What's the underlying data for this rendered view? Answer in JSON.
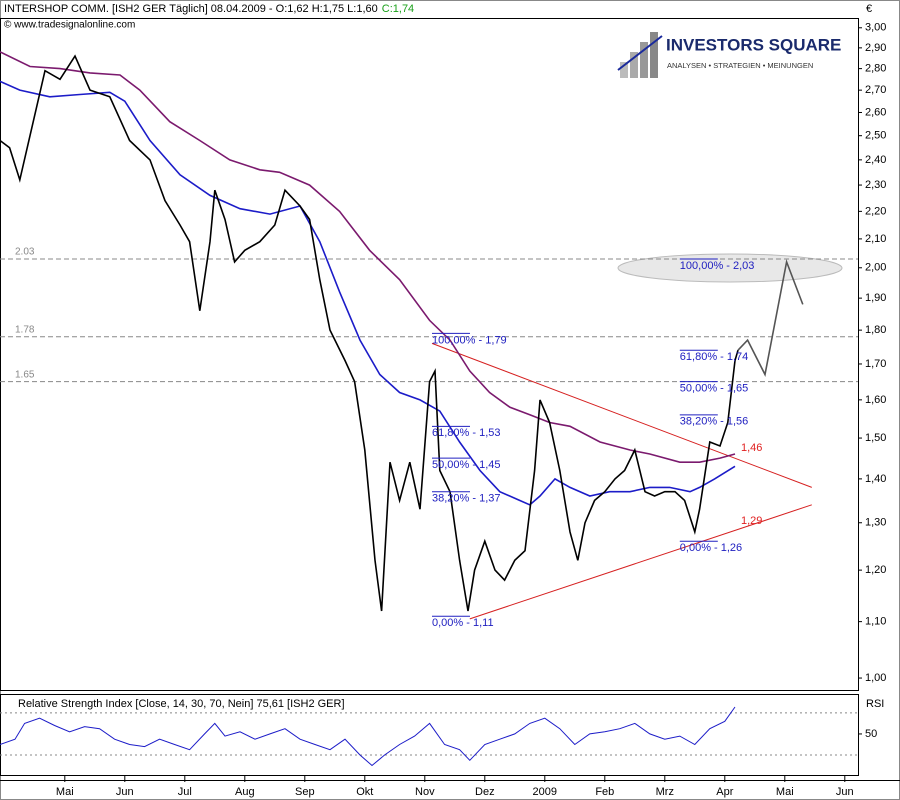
{
  "logo": {
    "title": "INVESTORS SQUARE",
    "subtitle": "ANALYSEN • STRATEGIEN • MEINUNGEN"
  },
  "chart_data": [
    {
      "type": "line",
      "title": "INTERSHOP COMM. [ISH2 GER  Täglich] 08.04.2009 - O:1,62 H:1,75 L:1,60",
      "title_close": "C:1,74",
      "source": "© www.tradesignalonline.com",
      "currency": "€",
      "log_scale": true,
      "xlim": [
        -0.08,
        14.22
      ],
      "xticks": [
        {
          "value": 1,
          "label": "Mai"
        },
        {
          "value": 2,
          "label": "Jun"
        },
        {
          "value": 3,
          "label": "Jul"
        },
        {
          "value": 4,
          "label": "Aug"
        },
        {
          "value": 5,
          "label": "Sep"
        },
        {
          "value": 6,
          "label": "Okt"
        },
        {
          "value": 7,
          "label": "Nov"
        },
        {
          "value": 8,
          "label": "Dez"
        },
        {
          "value": 9,
          "label": "2009"
        },
        {
          "value": 10,
          "label": "Feb"
        },
        {
          "value": 11,
          "label": "Mrz"
        },
        {
          "value": 12,
          "label": "Apr"
        },
        {
          "value": 13,
          "label": "Mai"
        },
        {
          "value": 14,
          "label": "Jun"
        }
      ],
      "ylim": [
        0.98,
        3.05
      ],
      "yticks": [
        {
          "value": 1.0,
          "label": "1,00"
        },
        {
          "value": 1.1,
          "label": "1,10"
        },
        {
          "value": 1.2,
          "label": "1,20"
        },
        {
          "value": 1.3,
          "label": "1,30"
        },
        {
          "value": 1.4,
          "label": "1,40"
        },
        {
          "value": 1.5,
          "label": "1,50"
        },
        {
          "value": 1.6,
          "label": "1,60"
        },
        {
          "value": 1.7,
          "label": "1,70"
        },
        {
          "value": 1.8,
          "label": "1,80"
        },
        {
          "value": 1.9,
          "label": "1,90"
        },
        {
          "value": 2.0,
          "label": "2,00"
        },
        {
          "value": 2.1,
          "label": "2,10"
        },
        {
          "value": 2.2,
          "label": "2,20"
        },
        {
          "value": 2.3,
          "label": "2,30"
        },
        {
          "value": 2.4,
          "label": "2,40"
        },
        {
          "value": 2.5,
          "label": "2,50"
        },
        {
          "value": 2.6,
          "label": "2,60"
        },
        {
          "value": 2.7,
          "label": "2,70"
        },
        {
          "value": 2.8,
          "label": "2,80"
        },
        {
          "value": 2.9,
          "label": "2,90"
        },
        {
          "value": 3.0,
          "label": "3,00"
        }
      ],
      "levels": [
        2.03,
        1.78,
        1.65
      ],
      "series": [
        {
          "color": "#7b1a6e",
          "x": [
            -0.08,
            0.42,
            0.92,
            1.42,
            1.92,
            2.25,
            2.75,
            3.25,
            3.75,
            4.25,
            4.58,
            5.08,
            5.58,
            6.08,
            6.58,
            7.08,
            7.42,
            7.75,
            8.08,
            8.42,
            8.75,
            9.08,
            9.42,
            9.92,
            10.42,
            10.75,
            11.25,
            11.58,
            11.92,
            12.17
          ],
          "values": [
            2.88,
            2.81,
            2.8,
            2.78,
            2.77,
            2.7,
            2.56,
            2.48,
            2.4,
            2.36,
            2.35,
            2.3,
            2.2,
            2.06,
            1.96,
            1.83,
            1.77,
            1.68,
            1.62,
            1.58,
            1.56,
            1.54,
            1.53,
            1.49,
            1.47,
            1.46,
            1.44,
            1.44,
            1.45,
            1.46
          ]
        },
        {
          "color": "#1c1cc8",
          "x": [
            -0.08,
            0.25,
            0.75,
            1.25,
            1.75,
            2,
            2.42,
            2.92,
            3.42,
            3.92,
            4.42,
            4.92,
            5.25,
            5.58,
            5.92,
            6.25,
            6.58,
            6.92,
            7.25,
            7.58,
            7.92,
            8.25,
            8.58,
            8.75,
            8.92,
            9.17,
            9.42,
            9.75,
            10.08,
            10.42,
            10.75,
            11.08,
            11.42,
            11.58,
            11.83,
            12.17
          ],
          "values": [
            2.74,
            2.7,
            2.67,
            2.68,
            2.69,
            2.65,
            2.48,
            2.34,
            2.26,
            2.21,
            2.19,
            2.22,
            2.09,
            1.92,
            1.77,
            1.67,
            1.62,
            1.6,
            1.57,
            1.49,
            1.42,
            1.37,
            1.35,
            1.34,
            1.36,
            1.4,
            1.38,
            1.36,
            1.37,
            1.37,
            1.38,
            1.38,
            1.37,
            1.38,
            1.4,
            1.43
          ]
        },
        {
          "color": "#000000",
          "x": [
            -0.08,
            0.08,
            0.25,
            0.42,
            0.67,
            0.92,
            1.17,
            1.42,
            1.75,
            2.08,
            2.42,
            2.67,
            2.92,
            3.08,
            3.25,
            3.42,
            3.5,
            3.67,
            3.83,
            4,
            4.25,
            4.5,
            4.67,
            4.92,
            5.08,
            5.25,
            5.42,
            5.67,
            5.83,
            6,
            6.17,
            6.28,
            6.42,
            6.58,
            6.75,
            6.92,
            7.08,
            7.17,
            7.25,
            7.42,
            7.58,
            7.72,
            7.83,
            8,
            8.17,
            8.33,
            8.5,
            8.67,
            8.83,
            8.92,
            9.08,
            9.25,
            9.42,
            9.55,
            9.67,
            9.83,
            10,
            10.17,
            10.33,
            10.5,
            10.67,
            10.83,
            11,
            11.17,
            11.33,
            11.5,
            11.58,
            11.75,
            11.92,
            12.05,
            12.17,
            12.22
          ],
          "values": [
            2.48,
            2.45,
            2.32,
            2.5,
            2.79,
            2.75,
            2.86,
            2.7,
            2.67,
            2.48,
            2.4,
            2.24,
            2.15,
            2.09,
            1.86,
            2.09,
            2.28,
            2.17,
            2.02,
            2.06,
            2.09,
            2.15,
            2.28,
            2.22,
            2.17,
            1.96,
            1.8,
            1.71,
            1.65,
            1.47,
            1.22,
            1.12,
            1.44,
            1.35,
            1.44,
            1.33,
            1.65,
            1.68,
            1.42,
            1.37,
            1.22,
            1.12,
            1.2,
            1.26,
            1.2,
            1.18,
            1.22,
            1.24,
            1.42,
            1.6,
            1.54,
            1.42,
            1.28,
            1.22,
            1.3,
            1.35,
            1.37,
            1.4,
            1.42,
            1.47,
            1.37,
            1.36,
            1.37,
            1.37,
            1.35,
            1.28,
            1.33,
            1.49,
            1.48,
            1.54,
            1.71,
            1.74
          ]
        },
        {
          "color": "#555555",
          "x": [
            12.22,
            12.38,
            12.67,
            13.03,
            13.3
          ],
          "values": [
            1.74,
            1.77,
            1.67,
            2.02,
            1.88
          ]
        }
      ],
      "trendlines": [
        {
          "color": "#d62020",
          "x": [
            7.12,
            13.45
          ],
          "values": [
            1.76,
            1.38
          ]
        },
        {
          "color": "#d62020",
          "x": [
            7.75,
            13.45
          ],
          "values": [
            1.105,
            1.34
          ]
        }
      ],
      "annotations": [
        {
          "x": 7.12,
          "value": 1.79,
          "label": "100,00% - 1,79"
        },
        {
          "x": 7.12,
          "value": 1.53,
          "label": "61,80% - 1,53"
        },
        {
          "x": 7.12,
          "value": 1.45,
          "label": "50,00% - 1,45"
        },
        {
          "x": 7.12,
          "value": 1.37,
          "label": "38,20% - 1,37"
        },
        {
          "x": 7.12,
          "value": 1.11,
          "label": "0,00% - 1,11"
        },
        {
          "x": 11.25,
          "value": 2.03,
          "label": "100,00% - 2,03"
        },
        {
          "x": 11.25,
          "value": 1.74,
          "label": "61,80% - 1,74"
        },
        {
          "x": 11.25,
          "value": 1.65,
          "label": "50,00% - 1,65"
        },
        {
          "x": 11.25,
          "value": 1.56,
          "label": "38,20% - 1,56"
        },
        {
          "x": 11.25,
          "value": 1.26,
          "label": "0,00% - 1,26"
        }
      ],
      "marks": [
        {
          "x": 12.17,
          "value": 1.46,
          "label": "1,46",
          "color": "#e02020"
        },
        {
          "x": 12.17,
          "value": 1.29,
          "label": "1,29",
          "color": "#e02020"
        }
      ]
    },
    {
      "type": "line",
      "title": "Relative Strength Index [Close, 14, 30, 70, Nein] 75,61 [ISH2 GER]",
      "axis_label": "RSI",
      "xlim": [
        -0.08,
        14.22
      ],
      "ylim": [
        11,
        87
      ],
      "yticks": [
        50
      ],
      "levels": [
        30,
        70
      ],
      "series": [
        {
          "color": "#1c1cc8",
          "x": [
            -0.08,
            0.17,
            0.33,
            0.58,
            0.83,
            1.08,
            1.33,
            1.58,
            1.83,
            2.08,
            2.33,
            2.58,
            2.83,
            3.08,
            3.33,
            3.5,
            3.67,
            3.92,
            4.17,
            4.42,
            4.67,
            4.92,
            5.17,
            5.42,
            5.67,
            5.92,
            6.12,
            6.33,
            6.58,
            6.83,
            7.08,
            7.33,
            7.58,
            7.75,
            8,
            8.25,
            8.5,
            8.75,
            9,
            9.25,
            9.5,
            9.75,
            10,
            10.25,
            10.5,
            10.75,
            11,
            11.25,
            11.5,
            11.75,
            12,
            12.17
          ],
          "values": [
            40,
            45,
            60,
            65,
            58,
            52,
            57,
            55,
            45,
            40,
            38,
            45,
            40,
            35,
            50,
            60,
            48,
            52,
            45,
            50,
            55,
            45,
            40,
            35,
            45,
            30,
            20,
            30,
            40,
            48,
            60,
            40,
            35,
            25,
            40,
            45,
            50,
            60,
            65,
            55,
            40,
            50,
            52,
            55,
            60,
            50,
            45,
            48,
            40,
            55,
            62,
            75.61
          ]
        }
      ]
    }
  ]
}
